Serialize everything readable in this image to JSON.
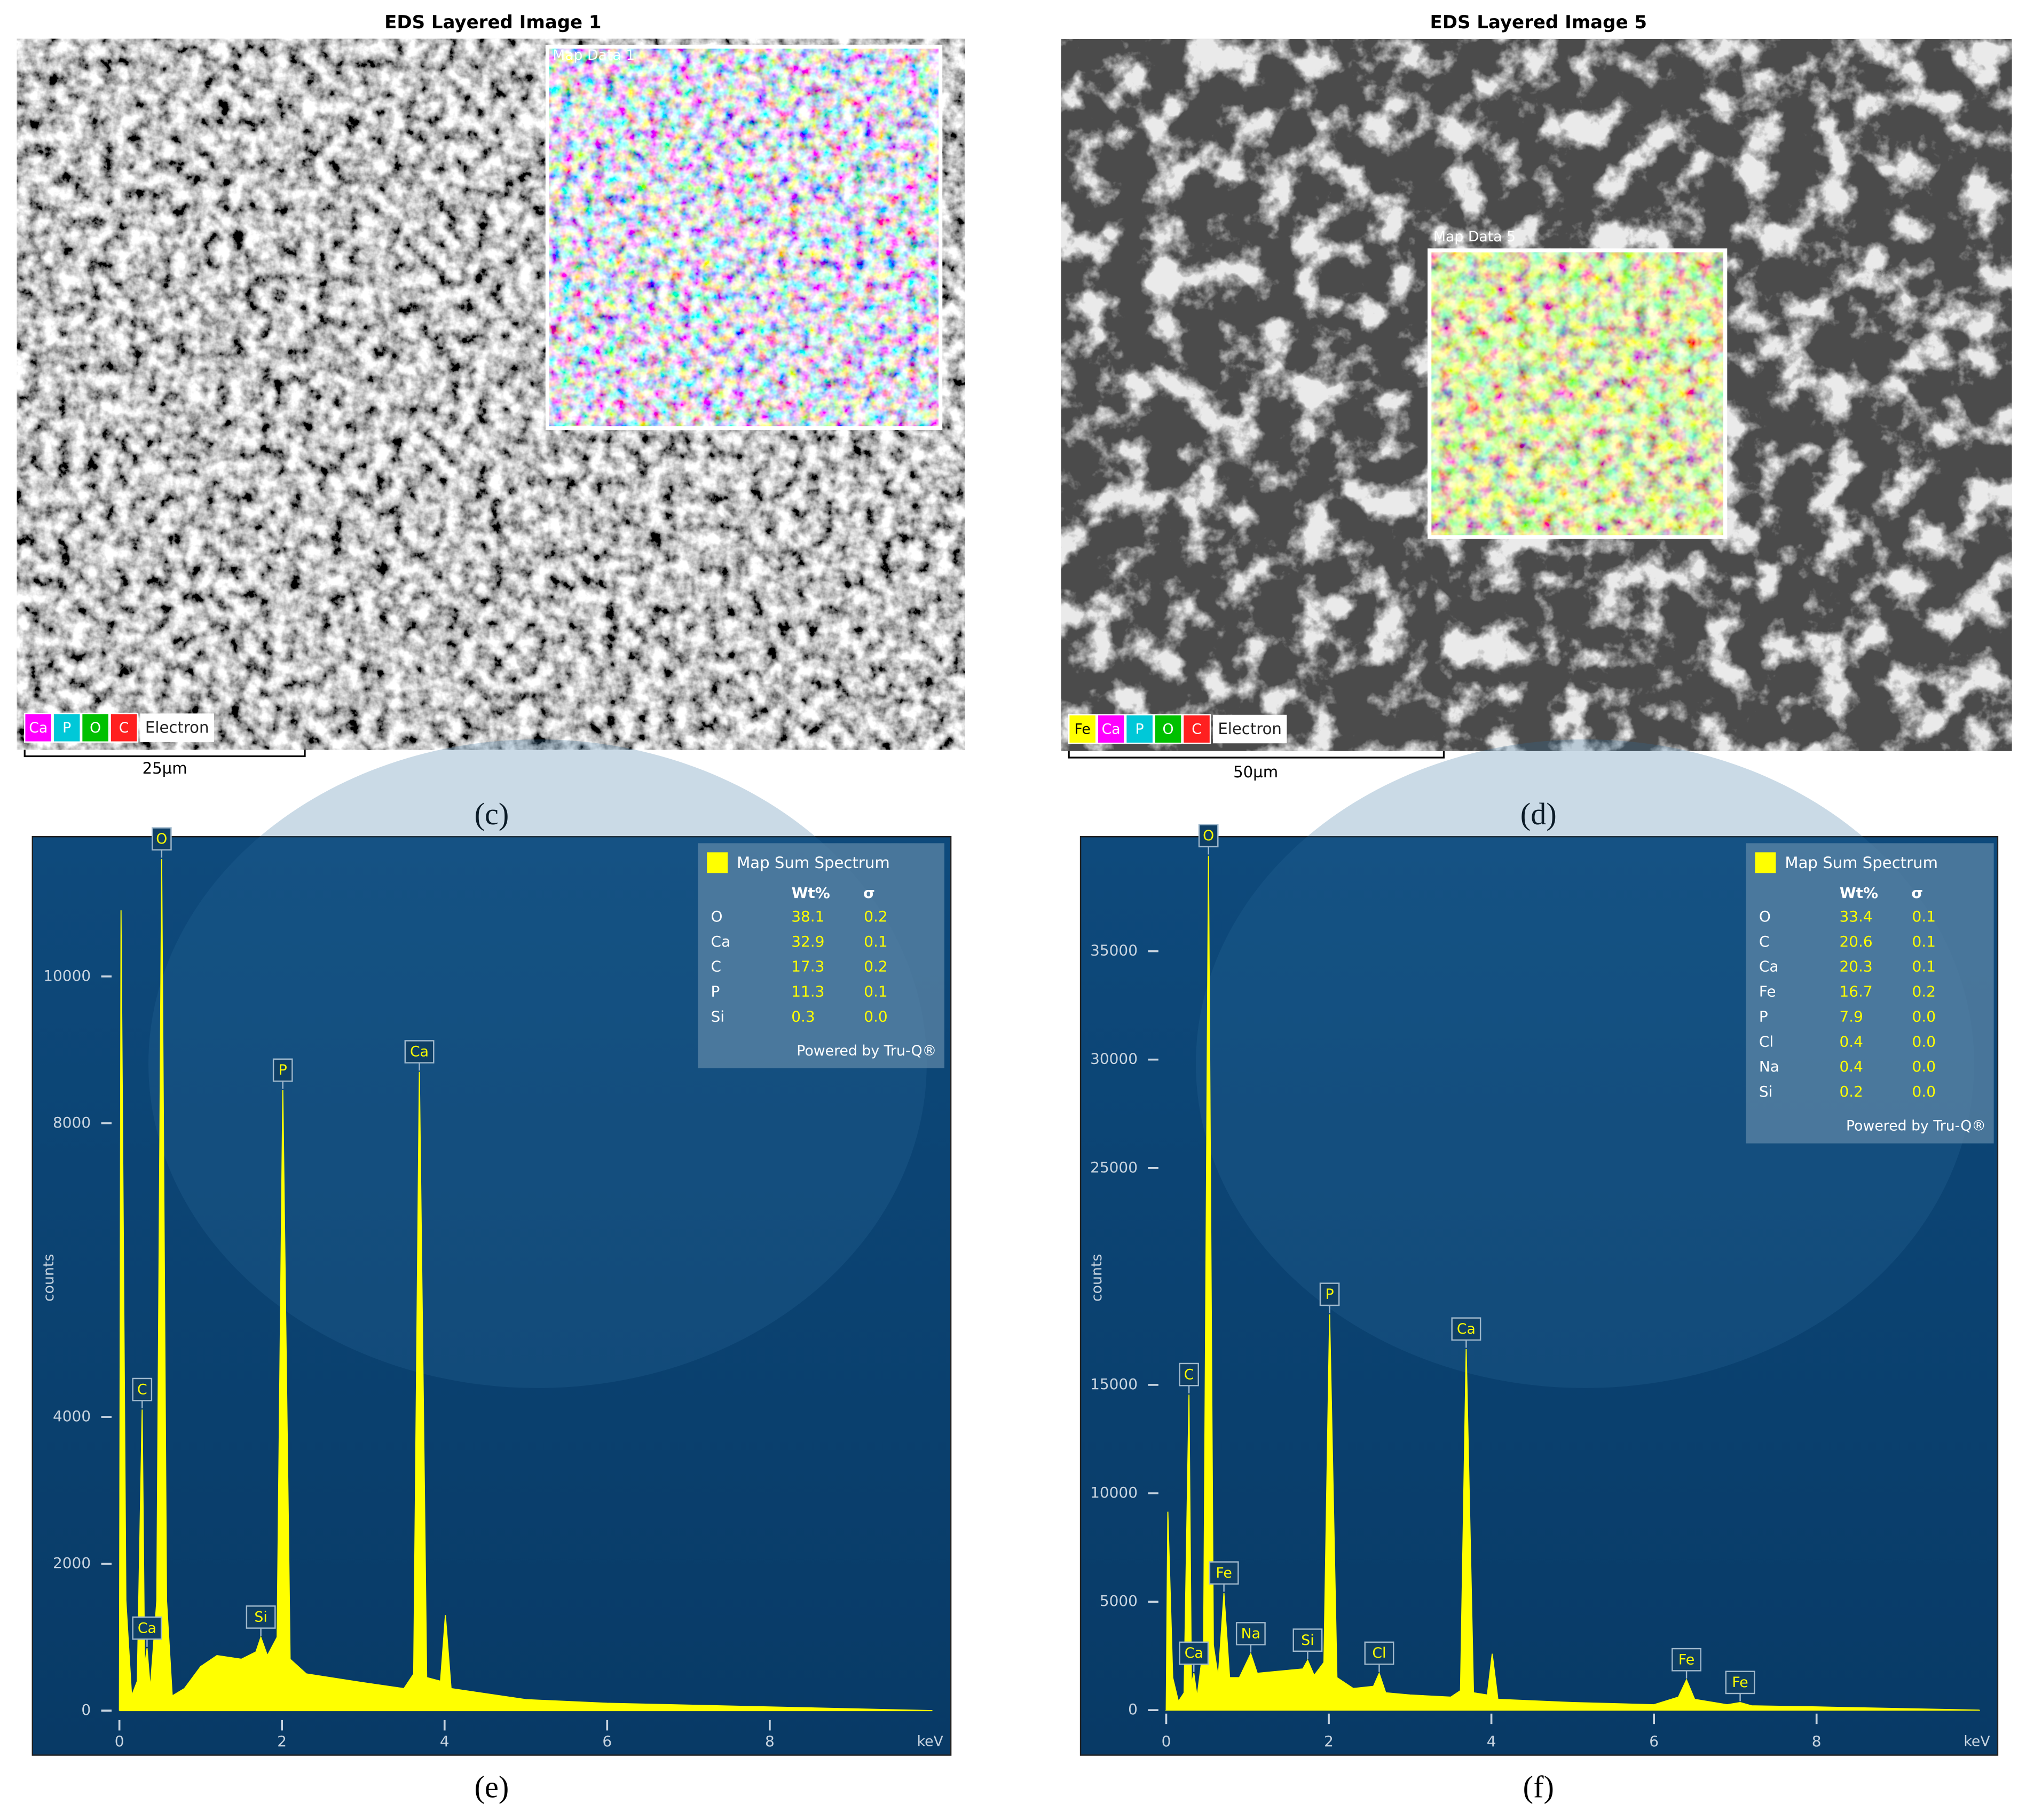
{
  "panels": [
    {
      "title": "EDS Layered Image 1",
      "inset_label": "Map Data 1",
      "channels": [
        {
          "name": "Ca",
          "color": "#ff00ff"
        },
        {
          "name": "P",
          "color": "#00c8d8"
        },
        {
          "name": "O",
          "color": "#00c000"
        },
        {
          "name": "C",
          "color": "#ff2020"
        }
      ],
      "base_channel": "Electron",
      "scale_bar": "25µm",
      "label": "(c)"
    },
    {
      "title": "EDS Layered Image 5",
      "inset_label": "Map Data 5",
      "channels": [
        {
          "name": "Fe",
          "color": "#ffff00"
        },
        {
          "name": "Ca",
          "color": "#ff00ff"
        },
        {
          "name": "P",
          "color": "#00c8d8"
        },
        {
          "name": "O",
          "color": "#00c000"
        },
        {
          "name": "C",
          "color": "#ff2020"
        }
      ],
      "base_channel": "Electron",
      "scale_bar": "50µm",
      "label": "(d)"
    }
  ],
  "chart_data": [
    {
      "type": "area",
      "label": "(e)",
      "y_label": "counts",
      "x_label": "keV",
      "x": [
        0,
        0.02,
        0.08,
        0.15,
        0.22,
        0.28,
        0.31,
        0.34,
        0.38,
        0.46,
        0.52,
        0.58,
        0.65,
        0.8,
        1.0,
        1.2,
        1.5,
        1.68,
        1.74,
        1.82,
        1.94,
        2.01,
        2.1,
        2.3,
        3.0,
        3.5,
        3.62,
        3.69,
        3.78,
        3.95,
        4.01,
        4.08,
        5,
        6,
        8,
        10
      ],
      "series": [
        {
          "name": "Map Sum Spectrum",
          "color": "#ffff00",
          "values": [
            0,
            10900,
            1500,
            200,
            400,
            4100,
            600,
            850,
            300,
            1500,
            11600,
            1500,
            200,
            300,
            600,
            750,
            700,
            800,
            1000,
            750,
            1000,
            8450,
            700,
            500,
            380,
            300,
            500,
            8700,
            450,
            400,
            1300,
            300,
            150,
            100,
            50,
            0
          ]
        }
      ],
      "xlim": [
        -0.16,
        10.1
      ],
      "xticks": [
        0,
        2,
        4,
        6,
        8
      ],
      "ylim": [
        -200,
        11850
      ],
      "yticks": [
        0,
        2000,
        4000,
        8000,
        10000
      ],
      "peak_labels": [
        {
          "label": "C",
          "x": 0.28
        },
        {
          "label": "Ca",
          "x": 0.34
        },
        {
          "label": "O",
          "x": 0.52
        },
        {
          "label": "Si",
          "x": 1.74
        },
        {
          "label": "P",
          "x": 2.01
        },
        {
          "label": "Ca",
          "x": 3.69
        }
      ],
      "composition": {
        "columns": [
          "Wt%",
          "σ"
        ],
        "rows": [
          [
            "O",
            "38.1",
            "0.2"
          ],
          [
            "Ca",
            "32.9",
            "0.1"
          ],
          [
            "C",
            "17.3",
            "0.2"
          ],
          [
            "P",
            "11.3",
            "0.1"
          ],
          [
            "Si",
            "0.3",
            "0.0"
          ]
        ],
        "footer": "Powered by Tru-Q®"
      }
    },
    {
      "type": "area",
      "label": "(f)",
      "y_label": "counts",
      "x_label": "keV",
      "x": [
        0,
        0.02,
        0.08,
        0.15,
        0.22,
        0.28,
        0.31,
        0.34,
        0.38,
        0.46,
        0.52,
        0.58,
        0.64,
        0.71,
        0.78,
        0.9,
        1.04,
        1.12,
        1.4,
        1.68,
        1.74,
        1.82,
        1.94,
        2.01,
        2.1,
        2.3,
        2.55,
        2.62,
        2.7,
        3.0,
        3.5,
        3.62,
        3.69,
        3.78,
        3.95,
        4.01,
        4.08,
        5,
        6,
        6.3,
        6.4,
        6.5,
        6.9,
        7.06,
        7.2,
        8,
        10
      ],
      "series": [
        {
          "name": "Map Sum Spectrum",
          "color": "#ffff00",
          "values": [
            0,
            9150,
            1500,
            400,
            800,
            14550,
            1200,
            1700,
            600,
            3000,
            39400,
            3000,
            1500,
            5400,
            1500,
            1500,
            2600,
            1700,
            1800,
            1900,
            2300,
            1600,
            2200,
            18250,
            1500,
            1000,
            1100,
            1700,
            800,
            700,
            600,
            900,
            16650,
            800,
            700,
            2600,
            500,
            350,
            250,
            600,
            1400,
            500,
            250,
            350,
            200,
            150,
            0
          ]
        }
      ],
      "xlim": [
        -0.16,
        10.1
      ],
      "xticks": [
        0,
        2,
        4,
        6,
        8
      ],
      "ylim": [
        -400,
        40100
      ],
      "yticks": [
        0,
        5000,
        10000,
        15000,
        25000,
        30000,
        35000
      ],
      "peak_labels": [
        {
          "label": "C",
          "x": 0.28
        },
        {
          "label": "Ca",
          "x": 0.34
        },
        {
          "label": "O",
          "x": 0.52
        },
        {
          "label": "Fe",
          "x": 0.71
        },
        {
          "label": "Na",
          "x": 1.04
        },
        {
          "label": "Si",
          "x": 1.74
        },
        {
          "label": "P",
          "x": 2.01
        },
        {
          "label": "Cl",
          "x": 2.62
        },
        {
          "label": "Ca",
          "x": 3.69
        },
        {
          "label": "Fe",
          "x": 6.4
        },
        {
          "label": "Fe",
          "x": 7.06
        }
      ],
      "composition": {
        "columns": [
          "Wt%",
          "σ"
        ],
        "rows": [
          [
            "O",
            "33.4",
            "0.1"
          ],
          [
            "C",
            "20.6",
            "0.1"
          ],
          [
            "Ca",
            "20.3",
            "0.1"
          ],
          [
            "Fe",
            "16.7",
            "0.2"
          ],
          [
            "P",
            "7.9",
            "0.0"
          ],
          [
            "Cl",
            "0.4",
            "0.0"
          ],
          [
            "Na",
            "0.4",
            "0.0"
          ],
          [
            "Si",
            "0.2",
            "0.0"
          ]
        ],
        "footer": "Powered by Tru-Q®"
      }
    }
  ]
}
